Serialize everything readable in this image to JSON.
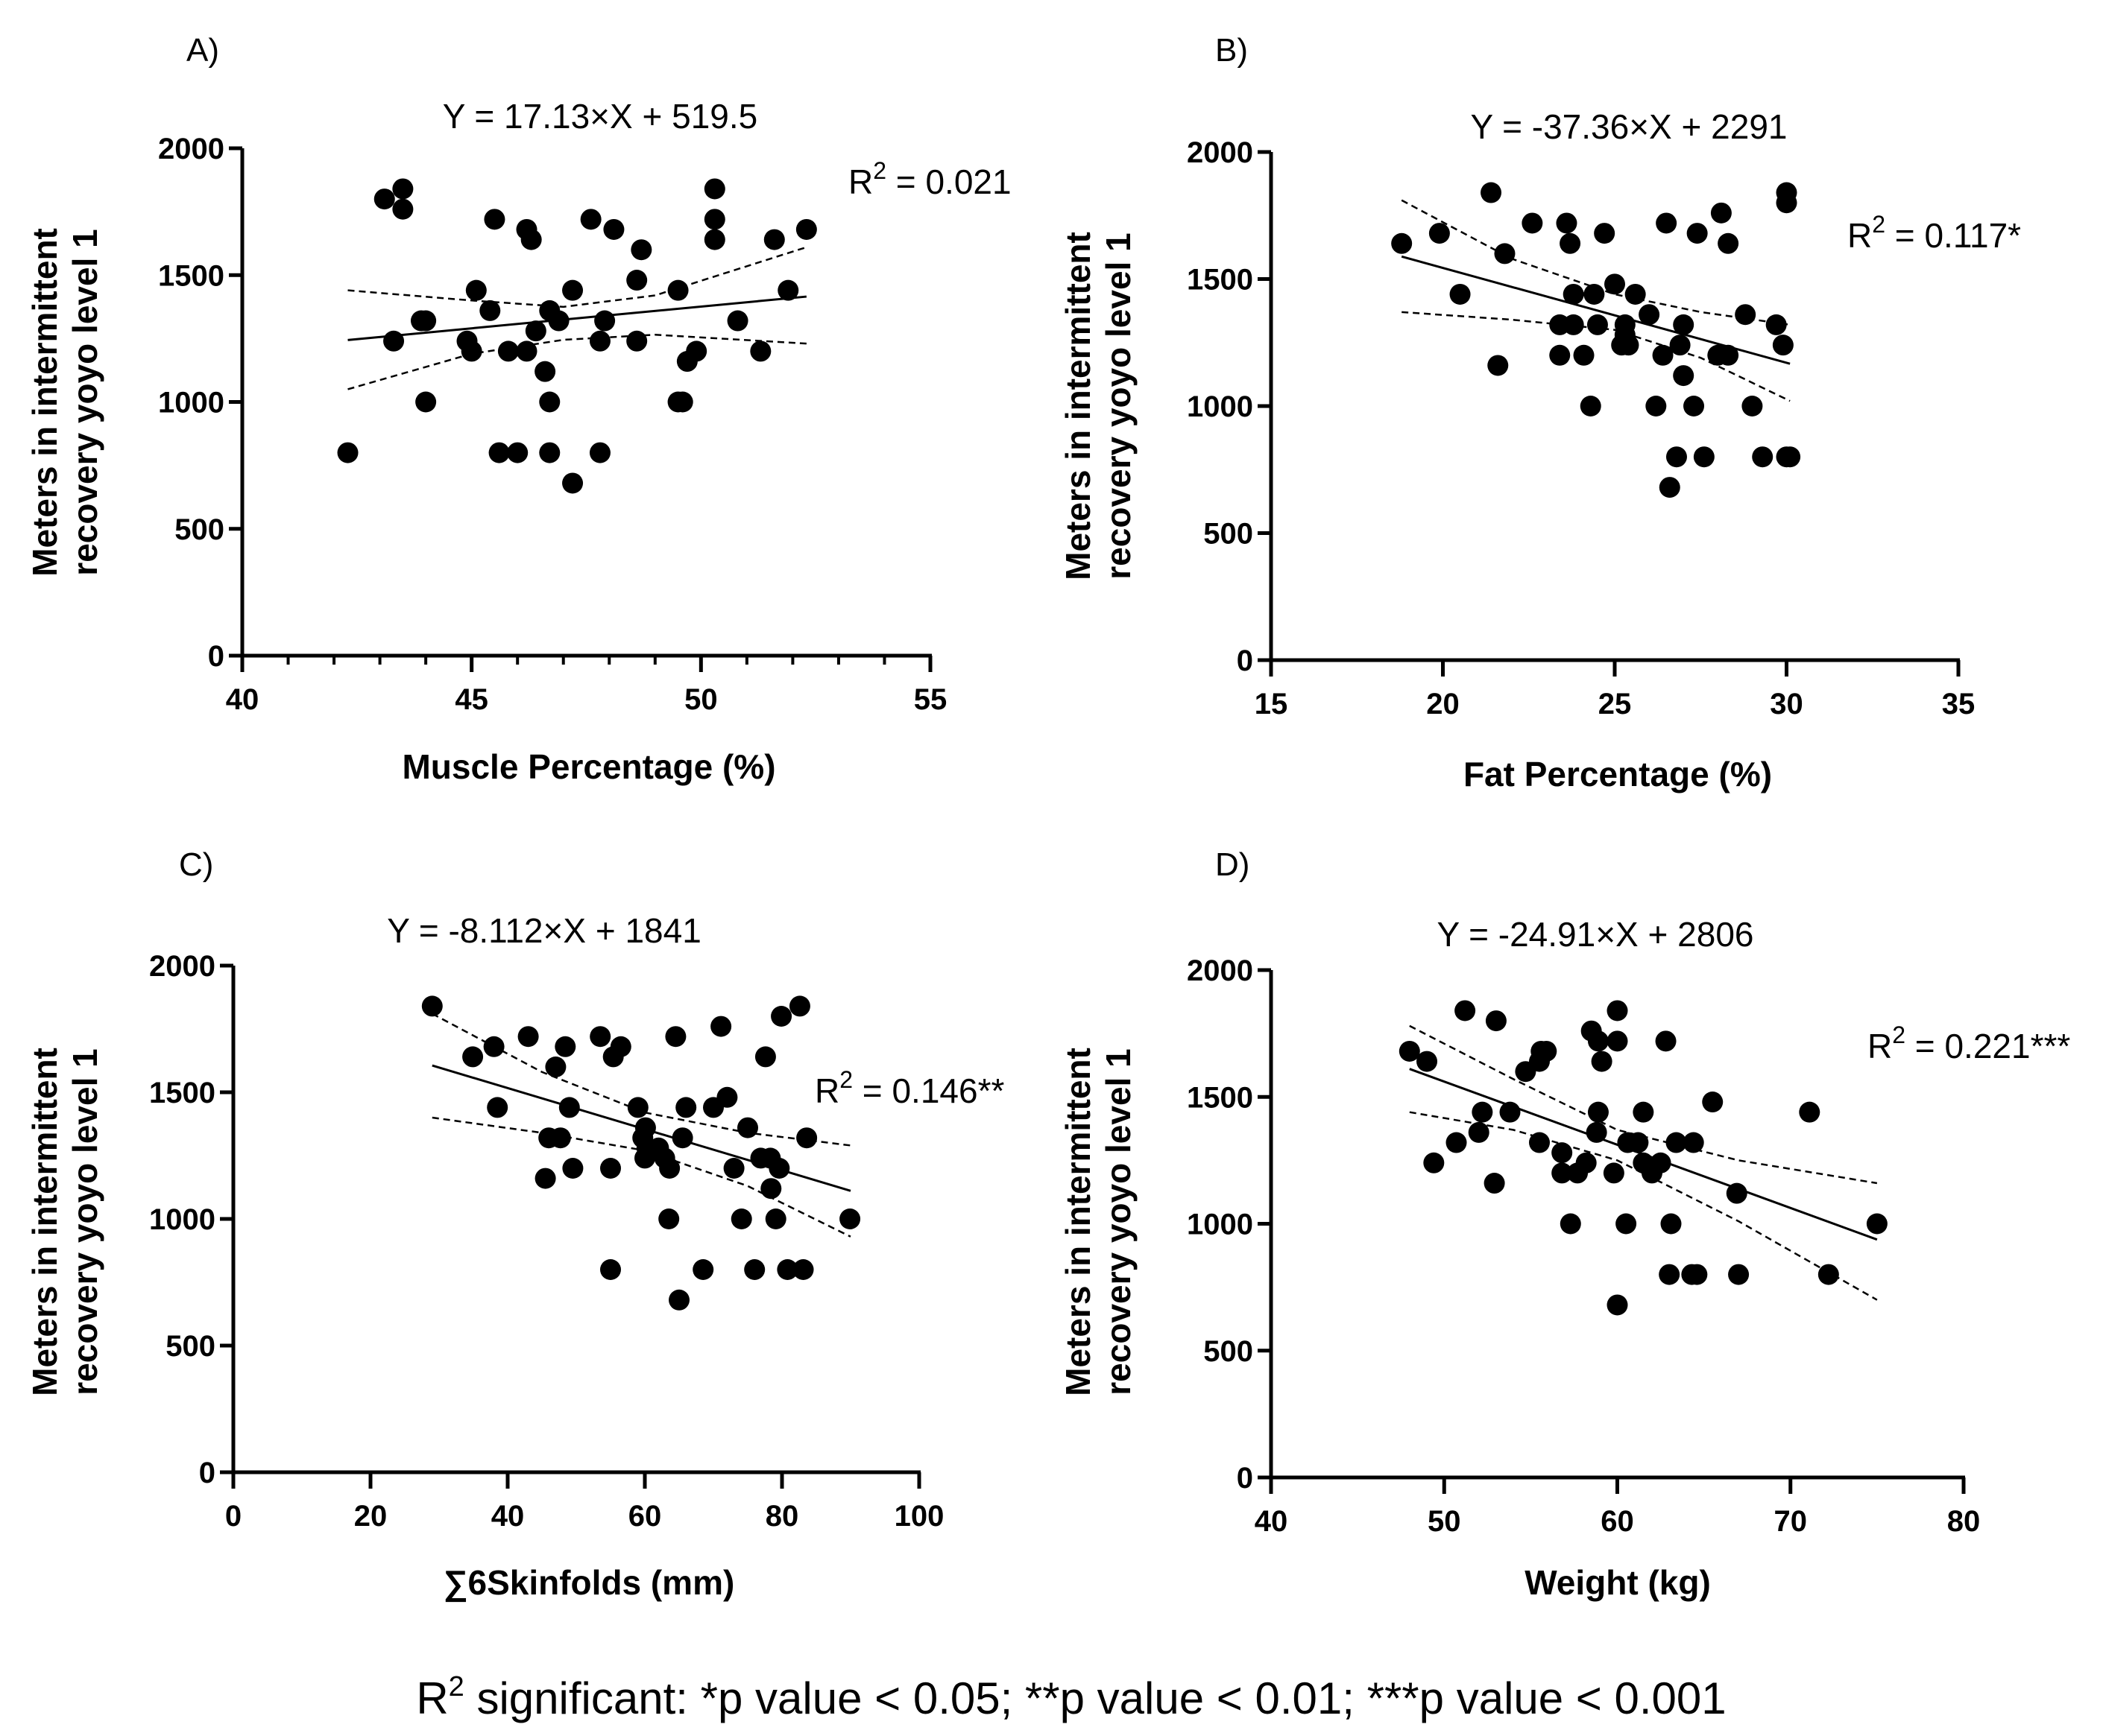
{
  "footer": {
    "prefix": "R",
    "sup": "2",
    "text": " significant: *p value < 0.05;  **p value < 0.01; ***p value < 0.001"
  },
  "chart_data": [
    {
      "type": "scatter",
      "panel": "A)",
      "equation": "Y = 17.13×X + 519.5",
      "slope": 17.13,
      "intercept": 519.5,
      "r2_label": "= 0.021",
      "xlabel": "Muscle Percentage (%)",
      "ylabel": [
        "Meters in intermittent",
        "recovery yoyo level 1"
      ],
      "xlim": [
        40,
        55
      ],
      "ylim": [
        0,
        2000
      ],
      "xticks": [
        40,
        45,
        50,
        55
      ],
      "yticks": [
        0,
        500,
        1000,
        1500,
        2000
      ],
      "minor_x_step": 1,
      "fit_range": [
        42.3,
        52.3
      ],
      "ci": {
        "x": [
          42.3,
          45,
          47,
          49,
          52.3
        ],
        "lower": [
          1050,
          1190,
          1245,
          1265,
          1230
        ],
        "upper": [
          1440,
          1400,
          1375,
          1420,
          1610
        ]
      },
      "points": [
        [
          42.3,
          800
        ],
        [
          43.1,
          1800
        ],
        [
          43.5,
          1840
        ],
        [
          43.5,
          1760
        ],
        [
          43.3,
          1240
        ],
        [
          43.9,
          1320
        ],
        [
          44.0,
          1320
        ],
        [
          44.0,
          1000
        ],
        [
          45.1,
          1440
        ],
        [
          44.9,
          1240
        ],
        [
          45.0,
          1200
        ],
        [
          45.4,
          1360
        ],
        [
          45.5,
          1720
        ],
        [
          45.6,
          800
        ],
        [
          45.8,
          1200
        ],
        [
          46.0,
          800
        ],
        [
          46.2,
          1200
        ],
        [
          46.2,
          1680
        ],
        [
          46.3,
          1640
        ],
        [
          46.4,
          1280
        ],
        [
          46.6,
          1120
        ],
        [
          46.7,
          1000
        ],
        [
          46.7,
          800
        ],
        [
          46.7,
          1360
        ],
        [
          46.9,
          1320
        ],
        [
          47.2,
          680
        ],
        [
          47.2,
          1440
        ],
        [
          47.6,
          1720
        ],
        [
          47.8,
          800
        ],
        [
          47.8,
          1240
        ],
        [
          47.9,
          1320
        ],
        [
          48.1,
          1680
        ],
        [
          48.6,
          1480
        ],
        [
          48.6,
          1240
        ],
        [
          48.7,
          1600
        ],
        [
          49.5,
          1440
        ],
        [
          49.5,
          1000
        ],
        [
          49.6,
          1000
        ],
        [
          49.7,
          1160
        ],
        [
          49.9,
          1200
        ],
        [
          50.3,
          1840
        ],
        [
          50.3,
          1720
        ],
        [
          50.3,
          1640
        ],
        [
          50.8,
          1320
        ],
        [
          51.3,
          1200
        ],
        [
          51.6,
          1640
        ],
        [
          51.9,
          1440
        ],
        [
          52.3,
          1680
        ]
      ]
    },
    {
      "type": "scatter",
      "panel": "B)",
      "equation": "Y = -37.36×X + 2291",
      "slope": -37.36,
      "intercept": 2291,
      "r2_label": "= 0.117*",
      "xlabel": "Fat Percentage (%)",
      "ylabel": [
        "Meters in intermittent",
        "recovery yoyo level 1"
      ],
      "xlim": [
        15,
        35
      ],
      "ylim": [
        0,
        2000
      ],
      "xticks": [
        15,
        20,
        25,
        30,
        35
      ],
      "yticks": [
        0,
        500,
        1000,
        1500,
        2000
      ],
      "minor_x_step": 0,
      "fit_range": [
        18.8,
        30.1
      ],
      "ci": {
        "x": [
          18.8,
          22,
          25,
          27.5,
          30.1
        ],
        "lower": [
          1370,
          1340,
          1300,
          1190,
          1020
        ],
        "upper": [
          1810,
          1580,
          1440,
          1370,
          1320
        ]
      },
      "points": [
        [
          18.8,
          1640
        ],
        [
          19.9,
          1680
        ],
        [
          20.5,
          1440
        ],
        [
          21.4,
          1840
        ],
        [
          21.6,
          1160
        ],
        [
          21.8,
          1600
        ],
        [
          22.6,
          1720
        ],
        [
          23.4,
          1320
        ],
        [
          23.4,
          1200
        ],
        [
          23.6,
          1720
        ],
        [
          23.7,
          1640
        ],
        [
          23.8,
          1440
        ],
        [
          23.8,
          1320
        ],
        [
          24.1,
          1200
        ],
        [
          24.3,
          1000
        ],
        [
          24.4,
          1440
        ],
        [
          24.5,
          1320
        ],
        [
          24.7,
          1680
        ],
        [
          25.0,
          1480
        ],
        [
          25.2,
          1240
        ],
        [
          25.3,
          1320
        ],
        [
          25.3,
          1280
        ],
        [
          25.4,
          1240
        ],
        [
          25.6,
          1440
        ],
        [
          26.0,
          1360
        ],
        [
          26.2,
          1000
        ],
        [
          26.4,
          1200
        ],
        [
          26.5,
          1720
        ],
        [
          26.6,
          680
        ],
        [
          26.8,
          800
        ],
        [
          26.9,
          1240
        ],
        [
          27.0,
          1120
        ],
        [
          27.0,
          1320
        ],
        [
          27.3,
          1000
        ],
        [
          27.4,
          1680
        ],
        [
          27.6,
          800
        ],
        [
          28.0,
          1200
        ],
        [
          28.1,
          1760
        ],
        [
          28.3,
          1200
        ],
        [
          28.3,
          1640
        ],
        [
          28.8,
          1360
        ],
        [
          29.0,
          1000
        ],
        [
          29.3,
          800
        ],
        [
          29.7,
          1320
        ],
        [
          29.9,
          1240
        ],
        [
          30.0,
          1840
        ],
        [
          30.0,
          1800
        ],
        [
          30.0,
          800
        ],
        [
          30.1,
          800
        ]
      ]
    },
    {
      "type": "scatter",
      "panel": "C)",
      "equation": "Y = -8.112×X + 1841",
      "slope": -8.112,
      "intercept": 1841,
      "r2_label": "= 0.146**",
      "xlabel": "∑6Skinfolds (mm)",
      "ylabel": [
        "Meters in intermittent",
        "recovery yoyo level 1"
      ],
      "xlim": [
        0,
        100
      ],
      "ylim": [
        0,
        2000
      ],
      "xticks": [
        0,
        20,
        40,
        60,
        80,
        100
      ],
      "yticks": [
        0,
        500,
        1000,
        1500,
        2000
      ],
      "minor_x_step": 0,
      "fit_range": [
        29,
        90
      ],
      "ci": {
        "x": [
          29,
          45,
          60,
          75,
          90
        ],
        "lower": [
          1400,
          1340,
          1270,
          1130,
          930
        ],
        "upper": [
          1810,
          1580,
          1420,
          1340,
          1290
        ]
      },
      "points": [
        [
          29,
          1840
        ],
        [
          34.9,
          1640
        ],
        [
          38,
          1680
        ],
        [
          38.5,
          1440
        ],
        [
          43,
          1720
        ],
        [
          47,
          1600
        ],
        [
          48.4,
          1680
        ],
        [
          49,
          1440
        ],
        [
          46,
          1320
        ],
        [
          47.7,
          1320
        ],
        [
          45.5,
          1160
        ],
        [
          49.5,
          1200
        ],
        [
          53.5,
          1720
        ],
        [
          55.4,
          1640
        ],
        [
          56.5,
          1680
        ],
        [
          55,
          1200
        ],
        [
          55,
          800
        ],
        [
          59,
          1440
        ],
        [
          60.1,
          1360
        ],
        [
          59.7,
          1320
        ],
        [
          60.3,
          1280
        ],
        [
          60,
          1240
        ],
        [
          62,
          1280
        ],
        [
          62.9,
          1240
        ],
        [
          63.6,
          1200
        ],
        [
          63.5,
          1000
        ],
        [
          64.5,
          1720
        ],
        [
          65,
          680
        ],
        [
          65.5,
          1320
        ],
        [
          66,
          1440
        ],
        [
          68.5,
          800
        ],
        [
          70,
          1440
        ],
        [
          71.1,
          1760
        ],
        [
          72,
          1480
        ],
        [
          73,
          1200
        ],
        [
          74.1,
          1000
        ],
        [
          75,
          1360
        ],
        [
          76,
          800
        ],
        [
          76.9,
          1240
        ],
        [
          77.6,
          1640
        ],
        [
          78.3,
          1240
        ],
        [
          78.4,
          1120
        ],
        [
          79.1,
          1000
        ],
        [
          79.6,
          1200
        ],
        [
          79.9,
          1800
        ],
        [
          80.8,
          800
        ],
        [
          82.6,
          1840
        ],
        [
          83.1,
          800
        ],
        [
          83.6,
          1320
        ],
        [
          89.9,
          1000
        ]
      ]
    },
    {
      "type": "scatter",
      "panel": "D)",
      "equation": "Y = -24.91×X + 2806",
      "slope": -24.91,
      "intercept": 2806,
      "r2_label": "= 0.221***",
      "xlabel": "Weight (kg)",
      "ylabel": [
        "Meters in intermittent",
        "recovery yoyo level 1"
      ],
      "xlim": [
        40,
        80
      ],
      "ylim": [
        0,
        2000
      ],
      "xticks": [
        40,
        50,
        60,
        70,
        80
      ],
      "yticks": [
        0,
        500,
        1000,
        1500,
        2000
      ],
      "minor_x_step": 0,
      "fit_range": [
        48,
        75
      ],
      "ci": {
        "x": [
          48,
          54,
          60,
          67,
          75
        ],
        "lower": [
          1440,
          1370,
          1250,
          1010,
          700
        ],
        "upper": [
          1780,
          1570,
          1370,
          1250,
          1160
        ]
      },
      "points": [
        [
          48.0,
          1680
        ],
        [
          49.0,
          1640
        ],
        [
          51.2,
          1840
        ],
        [
          53.0,
          1800
        ],
        [
          54.7,
          1600
        ],
        [
          55.5,
          1640
        ],
        [
          55.9,
          1680
        ],
        [
          55.6,
          1680
        ],
        [
          58.5,
          1760
        ],
        [
          58.9,
          1720
        ],
        [
          59.1,
          1640
        ],
        [
          60.0,
          1840
        ],
        [
          60.0,
          1720
        ],
        [
          62.8,
          1720
        ],
        [
          52.2,
          1440
        ],
        [
          53.8,
          1440
        ],
        [
          65.5,
          1480
        ],
        [
          71.1,
          1440
        ],
        [
          58.9,
          1440
        ],
        [
          61.5,
          1440
        ],
        [
          50.7,
          1320
        ],
        [
          52.0,
          1360
        ],
        [
          49.4,
          1240
        ],
        [
          52.9,
          1160
        ],
        [
          55.5,
          1320
        ],
        [
          56.8,
          1280
        ],
        [
          56.8,
          1200
        ],
        [
          57.7,
          1200
        ],
        [
          58.2,
          1240
        ],
        [
          58.8,
          1360
        ],
        [
          59.8,
          1200
        ],
        [
          60.6,
          1320
        ],
        [
          61.2,
          1320
        ],
        [
          61.5,
          1240
        ],
        [
          62.0,
          1200
        ],
        [
          62.5,
          1240
        ],
        [
          63.4,
          1320
        ],
        [
          64.4,
          1320
        ],
        [
          66.9,
          1120
        ],
        [
          57.3,
          1000
        ],
        [
          60.5,
          1000
        ],
        [
          63.1,
          1000
        ],
        [
          75.0,
          1000
        ],
        [
          63.0,
          800
        ],
        [
          64.3,
          800
        ],
        [
          64.6,
          800
        ],
        [
          67.0,
          800
        ],
        [
          72.2,
          800
        ],
        [
          60.0,
          680
        ]
      ]
    }
  ]
}
